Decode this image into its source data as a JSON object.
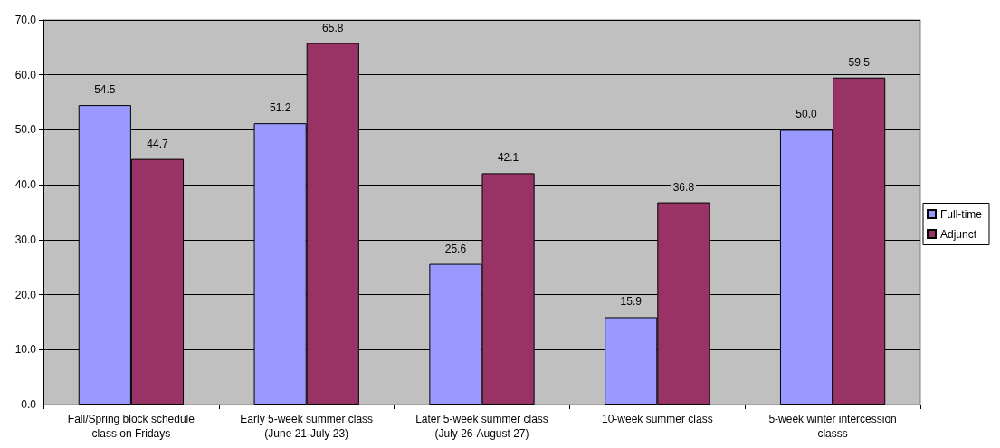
{
  "chart_data": {
    "type": "bar",
    "categories": [
      "Fall/Spring block schedule\nclass on Fridays",
      "Early 5-week summer class\n(June 21-July 23)",
      "Later 5-week summer class\n(July 26-August 27)",
      "10-week summer class",
      "5-week winter intercession\nclasss"
    ],
    "series": [
      {
        "name": "Full-time",
        "color": "#9999ff",
        "values": [
          54.5,
          51.2,
          25.6,
          15.9,
          50.0
        ],
        "value_labels": [
          "54.5",
          "51.2",
          "25.6",
          "15.9",
          "50.0"
        ]
      },
      {
        "name": "Adjunct",
        "color": "#993366",
        "values": [
          44.7,
          65.8,
          42.1,
          36.8,
          59.5
        ],
        "value_labels": [
          "44.7",
          "65.8",
          "42.1",
          "36.8",
          "59.5"
        ]
      }
    ],
    "ylim": [
      0,
      70
    ],
    "yticks": [
      {
        "value": 0,
        "label": "0.0"
      },
      {
        "value": 10,
        "label": "10.0"
      },
      {
        "value": 20,
        "label": "20.0"
      },
      {
        "value": 30,
        "label": "30.0"
      },
      {
        "value": 40,
        "label": "40.0"
      },
      {
        "value": 50,
        "label": "50.0"
      },
      {
        "value": 60,
        "label": "60.0"
      },
      {
        "value": 70,
        "label": "70.0"
      }
    ],
    "grid": "y",
    "legend": "right"
  }
}
